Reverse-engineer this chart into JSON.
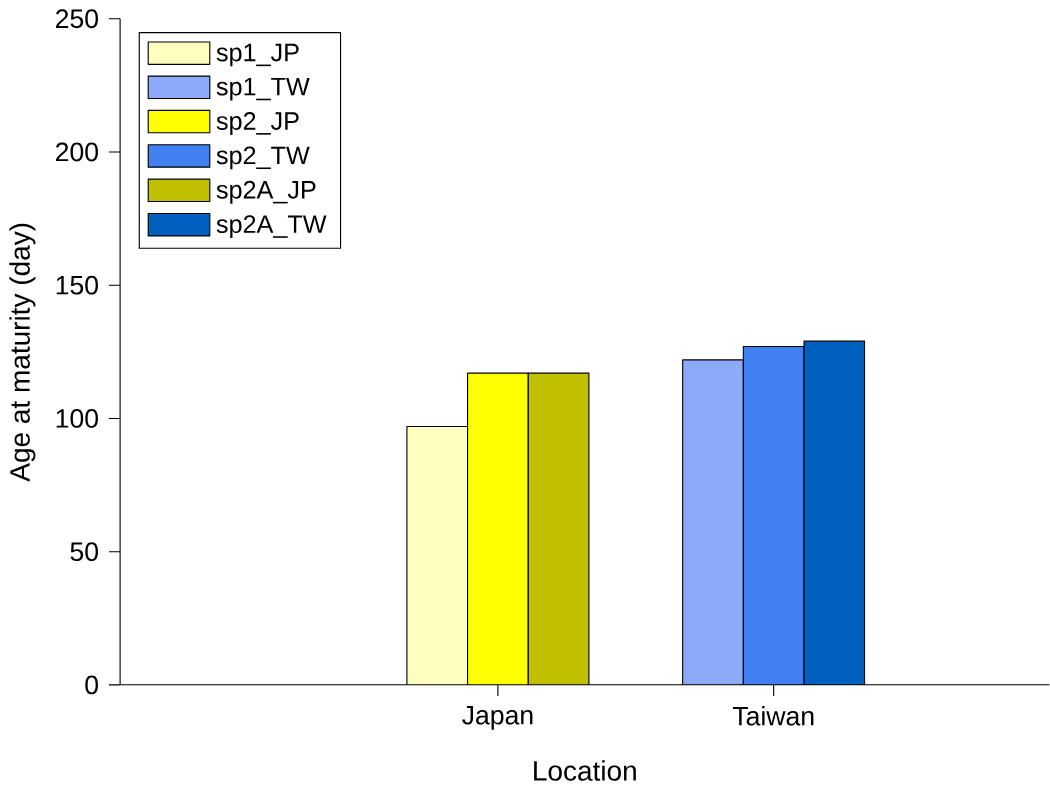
{
  "chart_data": {
    "type": "bar",
    "xlabel": "Location",
    "ylabel": "Age at maturity (day)",
    "categories": [
      "Japan",
      "Taiwan"
    ],
    "series": [
      {
        "name": "sp1_JP",
        "color": "#ffffc0",
        "values": [
          97,
          null
        ]
      },
      {
        "name": "sp1_TW",
        "color": "#8caaf8",
        "values": [
          null,
          122
        ]
      },
      {
        "name": "sp2_JP",
        "color": "#ffff00",
        "values": [
          117,
          null
        ]
      },
      {
        "name": "sp2_TW",
        "color": "#4080f0",
        "values": [
          null,
          127
        ]
      },
      {
        "name": "sp2A_JP",
        "color": "#c0c000",
        "values": [
          117,
          null
        ]
      },
      {
        "name": "sp2A_TW",
        "color": "#0060c0",
        "values": [
          null,
          129
        ]
      }
    ],
    "ylim": [
      0,
      250
    ],
    "yticks": [
      0,
      50,
      100,
      150,
      200,
      250
    ],
    "grid": false,
    "legend": "top left"
  }
}
